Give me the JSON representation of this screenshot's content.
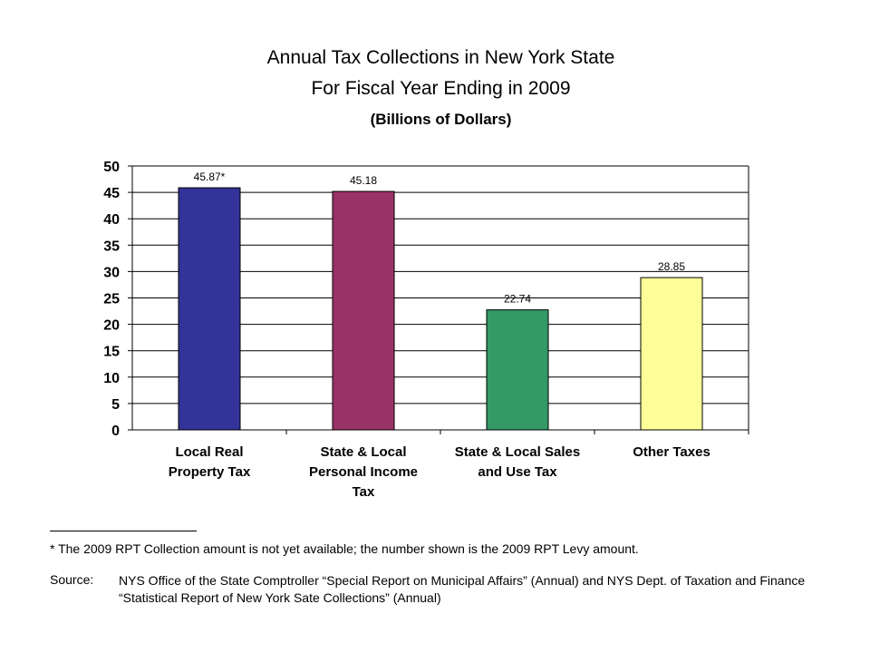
{
  "chart_data": {
    "type": "bar",
    "title": "Annual Tax Collections in New York State",
    "subtitle": "For Fiscal Year Ending in 2009",
    "units_note": "(Billions of Dollars)",
    "categories": [
      [
        "Local Real",
        "Property Tax"
      ],
      [
        "State & Local",
        "Personal Income",
        "Tax"
      ],
      [
        "State & Local Sales",
        "and Use Tax"
      ],
      [
        "Other Taxes"
      ]
    ],
    "values": [
      45.87,
      45.18,
      22.74,
      28.85
    ],
    "data_labels": [
      "45.87*",
      "45.18",
      "22.74",
      "28.85"
    ],
    "colors": [
      "#333399",
      "#993366",
      "#339966",
      "#FFFF99"
    ],
    "ylim": [
      0,
      50
    ],
    "yticks": [
      "0",
      "5",
      "10",
      "15",
      "20",
      "25",
      "30",
      "35",
      "40",
      "45",
      "50"
    ],
    "grid": true,
    "legend": "none"
  },
  "footnote": "* The 2009 RPT Collection amount is not yet available; the number shown is the 2009 RPT Levy amount.",
  "source_label": "Source:",
  "source_text": "NYS Office of the State Comptroller “Special Report on Municipal Affairs” (Annual) and NYS Dept. of Taxation and Finance “Statistical Report of New York Sate Collections” (Annual)"
}
